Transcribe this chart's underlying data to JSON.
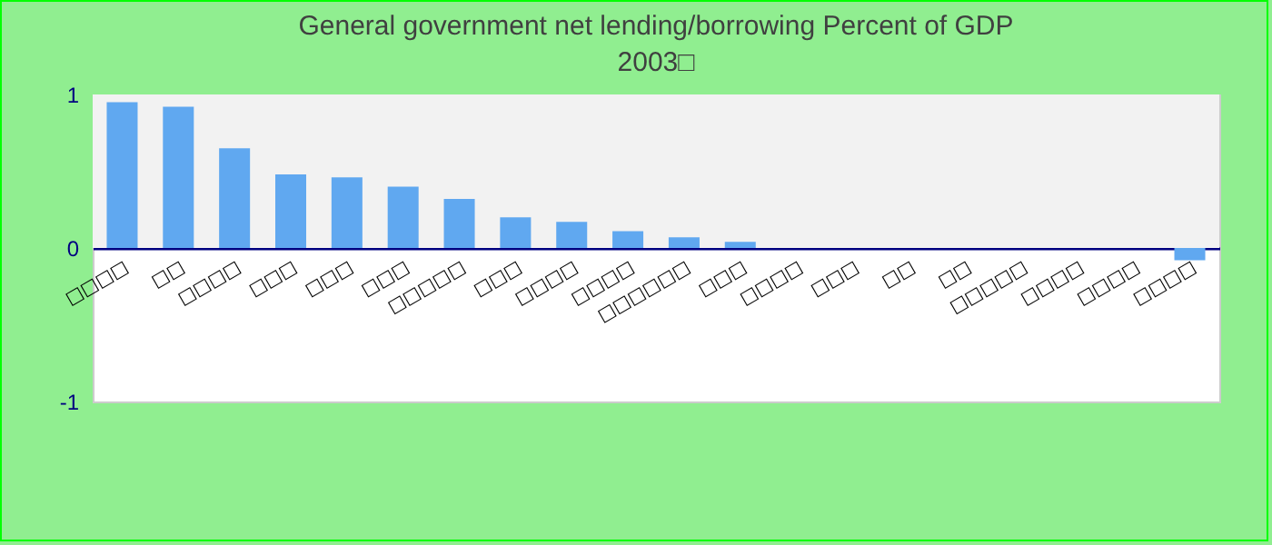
{
  "chart_data": {
    "type": "bar",
    "title": "General government net lending/borrowing  Percent of GDP",
    "subtitle": "2003□",
    "categories": [
      "□□□□",
      "□□",
      "□□□□",
      "□□□",
      "□□□",
      "□□□",
      "□□□□□",
      "□□□",
      "□□□□",
      "□□□□",
      "□□□□□□",
      "□□□",
      "□□□□",
      "□□□",
      "□□",
      "□□",
      "□□□□□",
      "□□□□",
      "□□□□",
      "□□□□"
    ],
    "values": [
      0.95,
      0.92,
      0.65,
      0.48,
      0.46,
      0.4,
      0.32,
      0.2,
      0.17,
      0.11,
      0.07,
      0.04,
      0,
      0,
      0,
      0,
      0,
      0,
      0,
      -0.08
    ],
    "color": "#60a8f0",
    "ylim": [
      -1,
      1
    ],
    "yticks": [
      -1,
      0,
      1
    ],
    "bands": [
      {
        "axis": "y",
        "from": 0,
        "to": 1,
        "color": "#f2f2f2"
      }
    ]
  }
}
